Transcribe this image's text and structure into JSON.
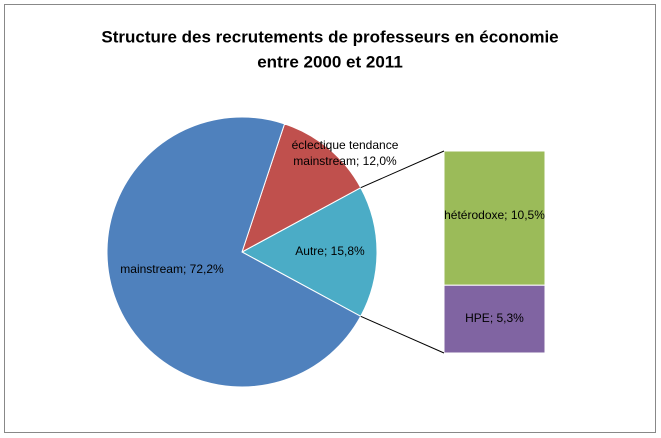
{
  "chart_data": {
    "type": "pie-of-bar",
    "title": "Structure des recrutements de professeurs en économie",
    "subtitle": "entre 2000 et 2011",
    "categories": [
      "Autre",
      "éclectique tendance mainstream",
      "mainstream"
    ],
    "values": [
      15.8,
      12.0,
      72.2
    ],
    "value_labels": [
      "15,8%",
      "12,0%",
      "72,2%"
    ],
    "colors": [
      "#4bacc6",
      "#c0504d",
      "#4f81bd"
    ],
    "bar": {
      "categories": [
        "hétérodoxe",
        "HPE"
      ],
      "values": [
        10.5,
        5.3
      ],
      "value_labels": [
        "10,5%",
        "5,3%"
      ],
      "colors": [
        "#9bbb59",
        "#8064a2"
      ]
    }
  }
}
